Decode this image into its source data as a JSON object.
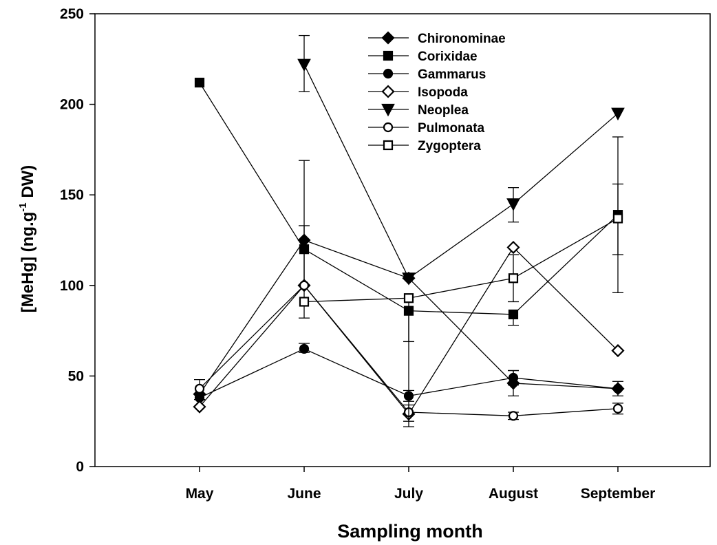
{
  "chart_data": {
    "type": "line",
    "categories": [
      "May",
      "June",
      "July",
      "August",
      "September"
    ],
    "ylabel_main": "[MeHg] (ng.g",
    "ylabel_sup": "-1",
    "ylabel_tail": " DW)",
    "xlabel": "Sampling month",
    "ylim": [
      0,
      250
    ],
    "yticks": [
      0,
      50,
      100,
      150,
      200,
      250
    ],
    "legend_position": "top-center",
    "grid": false,
    "series": [
      {
        "name": "Chironominae",
        "marker": "diamond-filled",
        "values": [
          40,
          125,
          104,
          46,
          43
        ],
        "err": [
          [
            null,
            null
          ],
          [
            82,
            169
          ],
          [
            null,
            null
          ],
          [
            39,
            53
          ],
          [
            null,
            null
          ]
        ]
      },
      {
        "name": "Corixidae",
        "marker": "square-filled",
        "values": [
          212,
          120,
          86,
          84,
          139
        ],
        "err": [
          [
            null,
            null
          ],
          [
            null,
            null
          ],
          [
            69,
            null
          ],
          [
            78,
            null
          ],
          [
            96,
            182
          ]
        ]
      },
      {
        "name": "Gammarus",
        "marker": "circle-filled",
        "values": [
          38,
          65,
          39,
          49,
          43
        ],
        "err": [
          [
            null,
            null
          ],
          [
            63,
            68
          ],
          [
            36,
            42
          ],
          [
            45,
            53
          ],
          [
            39,
            47
          ]
        ]
      },
      {
        "name": "Isopoda",
        "marker": "diamond-open",
        "values": [
          33,
          100,
          29,
          121,
          64
        ],
        "err": [
          [
            null,
            null
          ],
          [
            null,
            null
          ],
          [
            null,
            null
          ],
          [
            null,
            null
          ],
          [
            null,
            null
          ]
        ]
      },
      {
        "name": "Neoplea",
        "marker": "triangle-down-filled",
        "values": [
          null,
          222,
          104,
          145,
          195
        ],
        "err": [
          [
            null,
            null
          ],
          [
            207,
            238
          ],
          [
            null,
            null
          ],
          [
            135,
            154
          ],
          [
            null,
            null
          ]
        ]
      },
      {
        "name": "Pulmonata",
        "marker": "circle-open",
        "values": [
          43,
          100,
          30,
          28,
          32
        ],
        "err": [
          [
            37,
            48
          ],
          [
            null,
            133
          ],
          [
            25,
            34
          ],
          [
            26,
            30
          ],
          [
            29,
            35
          ]
        ]
      },
      {
        "name": "Zygoptera",
        "marker": "square-open",
        "values": [
          null,
          91,
          93,
          104,
          137
        ],
        "err": [
          [
            null,
            null
          ],
          [
            null,
            null
          ],
          [
            22,
            null
          ],
          [
            91,
            117
          ],
          [
            117,
            156
          ]
        ]
      }
    ]
  }
}
